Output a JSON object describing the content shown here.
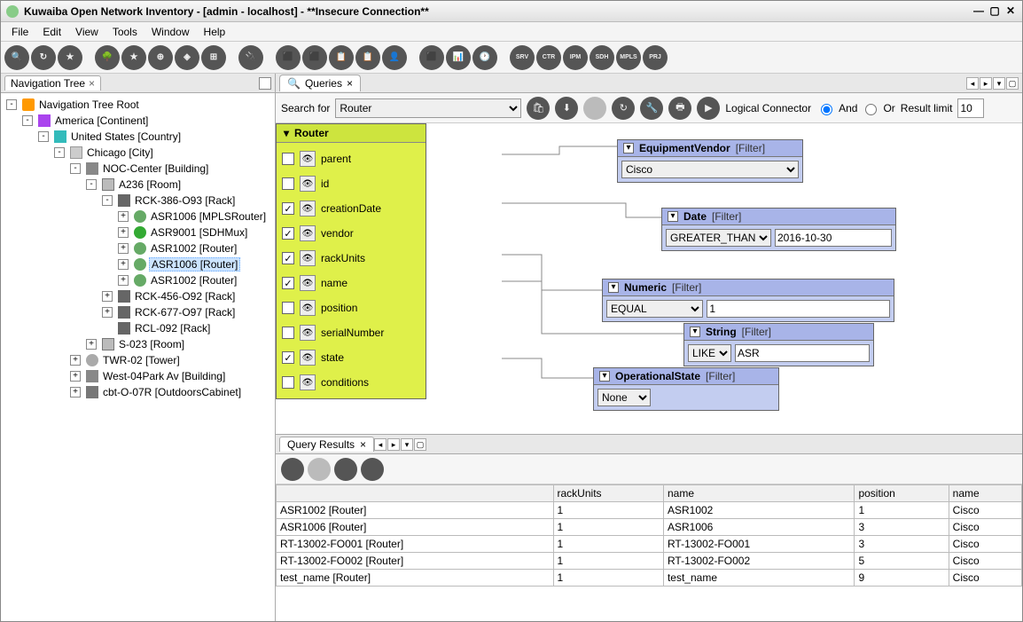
{
  "window": {
    "title": "Kuwaiba Open Network Inventory - [admin - localhost] - **Insecure Connection**"
  },
  "menu": [
    "File",
    "Edit",
    "View",
    "Tools",
    "Window",
    "Help"
  ],
  "toolbar_icons": [
    "🔍",
    "↻",
    "★",
    "",
    "🌳",
    "★",
    "⊕",
    "◈",
    "⊞",
    "",
    "🔌",
    "",
    "⬛",
    "⬛",
    "📋",
    "📋",
    "👤",
    "",
    "⬛",
    "📊",
    "🕐",
    "",
    "SRV",
    "CTR",
    "IPM",
    "SDH",
    "MPLS",
    "PRJ"
  ],
  "nav_panel": {
    "title": "Navigation Tree"
  },
  "tree": [
    {
      "d": 0,
      "e": "-",
      "i": "ico-star",
      "t": "Navigation Tree Root"
    },
    {
      "d": 1,
      "e": "-",
      "i": "ico-cont",
      "t": "America [Continent]"
    },
    {
      "d": 2,
      "e": "-",
      "i": "ico-ctry",
      "t": "United States [Country]"
    },
    {
      "d": 3,
      "e": "-",
      "i": "ico-city",
      "t": "Chicago [City]"
    },
    {
      "d": 4,
      "e": "-",
      "i": "ico-bld",
      "t": "NOC-Center [Building]"
    },
    {
      "d": 5,
      "e": "-",
      "i": "ico-room",
      "t": "A236 [Room]"
    },
    {
      "d": 6,
      "e": "-",
      "i": "ico-rack",
      "t": "RCK-386-O93 [Rack]"
    },
    {
      "d": 7,
      "e": "+",
      "i": "ico-rt",
      "t": "ASR1006 [MPLSRouter]"
    },
    {
      "d": 7,
      "e": "+",
      "i": "ico-sdh",
      "t": "ASR9001 [SDHMux]"
    },
    {
      "d": 7,
      "e": "+",
      "i": "ico-rt",
      "t": "ASR1002 [Router]"
    },
    {
      "d": 7,
      "e": "+",
      "i": "ico-rt",
      "t": "ASR1006 [Router]",
      "sel": true
    },
    {
      "d": 7,
      "e": "+",
      "i": "ico-rt",
      "t": "ASR1002 [Router]"
    },
    {
      "d": 6,
      "e": "+",
      "i": "ico-rack",
      "t": "RCK-456-O92 [Rack]"
    },
    {
      "d": 6,
      "e": "+",
      "i": "ico-rack",
      "t": "RCK-677-O97 [Rack]"
    },
    {
      "d": 6,
      "e": "",
      "i": "ico-rack",
      "t": "RCL-092 [Rack]"
    },
    {
      "d": 5,
      "e": "+",
      "i": "ico-room",
      "t": "S-023 [Room]"
    },
    {
      "d": 4,
      "e": "+",
      "i": "ico-tower",
      "t": "TWR-02 [Tower]"
    },
    {
      "d": 4,
      "e": "+",
      "i": "ico-bld",
      "t": "West-04Park Av [Building]"
    },
    {
      "d": 4,
      "e": "+",
      "i": "ico-cab",
      "t": "cbt-O-07R [OutdoorsCabinet]"
    }
  ],
  "queries_tab": "Queries",
  "q_toolbar": {
    "search_label": "Search for",
    "search_value": "Router",
    "logical_label": "Logical Connector",
    "and": "And",
    "or": "Or",
    "limit_label": "Result limit",
    "limit_value": "10"
  },
  "router_node": {
    "title": "Router",
    "attrs": [
      {
        "chk": false,
        "name": "parent"
      },
      {
        "chk": false,
        "name": "id"
      },
      {
        "chk": true,
        "name": "creationDate"
      },
      {
        "chk": true,
        "name": "vendor"
      },
      {
        "chk": true,
        "name": "rackUnits"
      },
      {
        "chk": true,
        "name": "name"
      },
      {
        "chk": false,
        "name": "position"
      },
      {
        "chk": false,
        "name": "serialNumber"
      },
      {
        "chk": true,
        "name": "state"
      },
      {
        "chk": false,
        "name": "conditions"
      }
    ]
  },
  "filter_nodes": {
    "vendor": {
      "title": "EquipmentVendor",
      "tag": "[Filter]",
      "value": "Cisco"
    },
    "date": {
      "title": "Date",
      "tag": "[Filter]",
      "op": "GREATER_THAN",
      "value": "2016-10-30"
    },
    "numeric": {
      "title": "Numeric",
      "tag": "[Filter]",
      "op": "EQUAL",
      "value": "1"
    },
    "string": {
      "title": "String",
      "tag": "[Filter]",
      "op": "LIKE",
      "value": "ASR"
    },
    "state": {
      "title": "OperationalState",
      "tag": "[Filter]",
      "value": "None"
    }
  },
  "results_tab": "Query Results",
  "results": {
    "columns": [
      "",
      "rackUnits",
      "name",
      "position",
      "name"
    ],
    "rows": [
      [
        "ASR1002 [Router]",
        "1",
        "ASR1002",
        "1",
        "Cisco"
      ],
      [
        "ASR1006 [Router]",
        "1",
        "ASR1006",
        "3",
        "Cisco"
      ],
      [
        "RT-13002-FO001 [Router]",
        "1",
        "RT-13002-FO001",
        "3",
        "Cisco"
      ],
      [
        "RT-13002-FO002 [Router]",
        "1",
        "RT-13002-FO002",
        "5",
        "Cisco"
      ],
      [
        "test_name [Router]",
        "1",
        "test_name",
        "9",
        "Cisco"
      ]
    ]
  }
}
